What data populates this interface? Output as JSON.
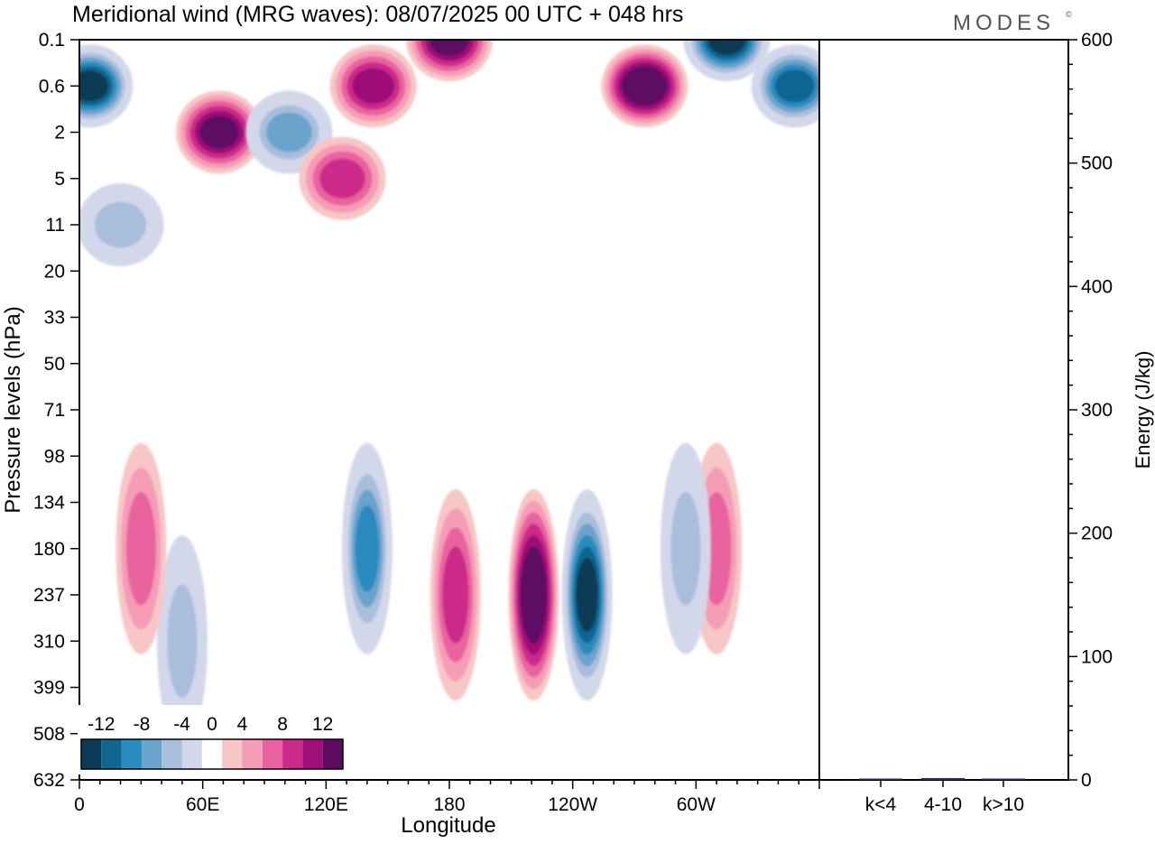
{
  "header": {
    "title": "Meridional wind (MRG waves):  08/07/2025  00 UTC  + 048 hrs",
    "logo_text": "MODES",
    "logo_mark": "©"
  },
  "chart_data": [
    {
      "type": "heatmap",
      "title": "Meridional wind (MRG waves):  08/07/2025  00 UTC  + 048 hrs",
      "xlabel": "Longitude",
      "ylabel": "Pressure levels (hPa)",
      "x_ticks": [
        "0",
        "60E",
        "120E",
        "180",
        "120W",
        "60W"
      ],
      "x_tick_degrees": [
        0,
        60,
        120,
        180,
        240,
        300
      ],
      "xlim": [
        0,
        360
      ],
      "y_ticks": [
        "0.1",
        "0.6",
        "2",
        "5",
        "11",
        "20",
        "33",
        "50",
        "71",
        "98",
        "134",
        "180",
        "237",
        "310",
        "399",
        "508",
        "632"
      ],
      "y_scale": "model levels (top 0.1 hPa, bottom 632 hPa)",
      "colorbar": {
        "labels": [
          "-12",
          "-8",
          "-4",
          "0",
          "4",
          "8",
          "12"
        ],
        "levels": [
          -14,
          -12,
          -10,
          -8,
          -6,
          -4,
          -2,
          2,
          4,
          6,
          8,
          10,
          12,
          14
        ],
        "colors": [
          "#0c3b57",
          "#11668f",
          "#2b8bbe",
          "#6aa3cc",
          "#a8bedc",
          "#d3d7ea",
          "#ffffff",
          "#f7c6c6",
          "#f59cb6",
          "#e9649f",
          "#cc2a8a",
          "#9e1077",
          "#5d0a63"
        ],
        "placement": "lower-left inset"
      },
      "features": [
        {
          "lon": 5,
          "level": "0.6",
          "value": -14
        },
        {
          "lon": 68,
          "level": "2",
          "value": 12
        },
        {
          "lon": 102,
          "level": "2",
          "value": -8
        },
        {
          "lon": 143,
          "level": "0.6",
          "value": 10
        },
        {
          "lon": 180,
          "level": "0.1",
          "value": 12
        },
        {
          "lon": 275,
          "level": "0.6",
          "value": 14
        },
        {
          "lon": 315,
          "level": "0.1",
          "value": -14
        },
        {
          "lon": 348,
          "level": "0.6",
          "value": -12
        },
        {
          "lon": 128,
          "level": "5",
          "value": 8
        },
        {
          "lon": 20,
          "level": "11",
          "value": -6
        },
        {
          "lon": 140,
          "level": "180",
          "value": -10
        },
        {
          "lon": 183,
          "level": "237",
          "value": 8
        },
        {
          "lon": 221,
          "level": "237",
          "value": 14
        },
        {
          "lon": 247,
          "level": "237",
          "value": -14
        },
        {
          "lon": 310,
          "level": "180",
          "value": 6
        },
        {
          "lon": 295,
          "level": "180",
          "value": -6
        },
        {
          "lon": 50,
          "level": "310",
          "value": -6
        },
        {
          "lon": 30,
          "level": "180",
          "value": 6
        }
      ]
    },
    {
      "type": "bar",
      "ylabel": "Energy (J/kg)",
      "ylim": [
        0,
        600
      ],
      "y_ticks": [
        "0",
        "100",
        "200",
        "300",
        "400",
        "500",
        "600"
      ],
      "categories": [
        "k<4",
        "4-10",
        "k>10"
      ],
      "values": [
        0.5,
        1.5,
        0.3
      ],
      "bar_color": "#2a2a6a"
    }
  ]
}
